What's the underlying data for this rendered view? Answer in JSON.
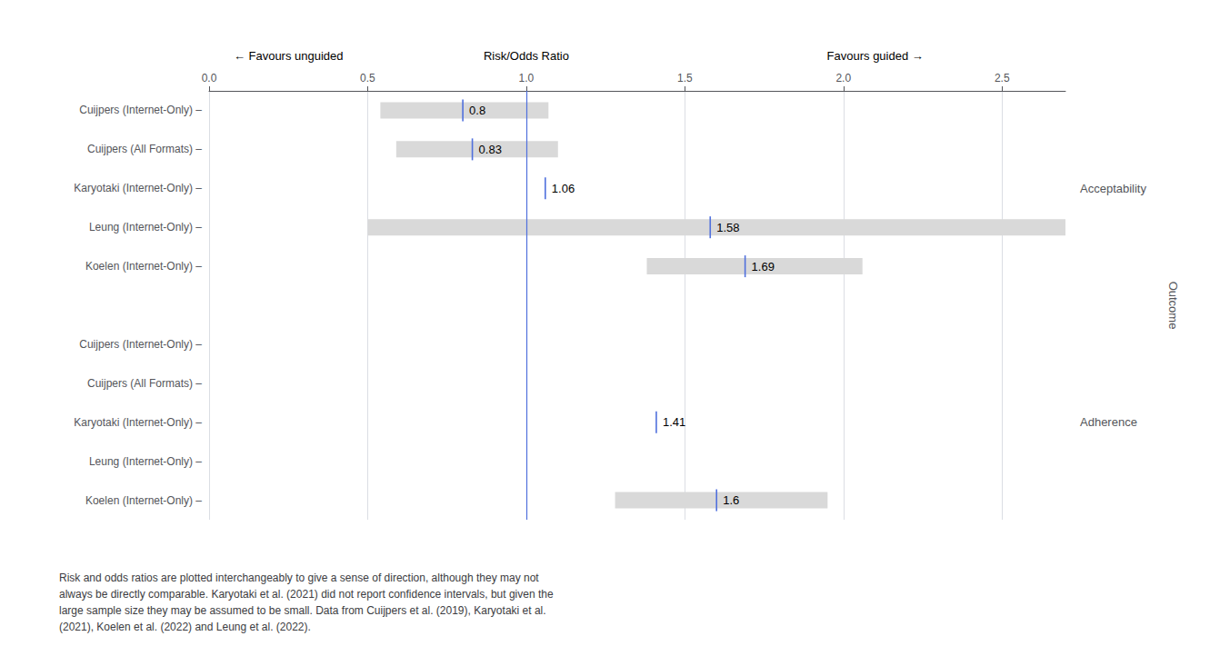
{
  "chart_data": {
    "type": "forest",
    "ylabel": "Outcome",
    "categories": [
      "Cuijpers (Internet-Only) –",
      "Cuijpers (All Formats) –",
      "Karyotaki (Internet-Only) –",
      "Leung (Internet-Only) –",
      "Koelen (Internet-Only) –"
    ],
    "groups": [
      {
        "label": "Acceptability",
        "values": [
          0.8,
          0.83,
          1.06,
          1.58,
          1.69
        ],
        "ci_lo": [
          0.54,
          0.59,
          null,
          0.5,
          1.38
        ],
        "ci_hi": [
          1.07,
          1.1,
          null,
          2.7,
          2.06
        ]
      },
      {
        "label": "Adherence",
        "values": [
          null,
          null,
          1.41,
          null,
          1.6
        ],
        "ci_lo": [
          null,
          null,
          null,
          null,
          1.28
        ],
        "ci_hi": [
          null,
          null,
          null,
          null,
          1.95
        ]
      }
    ],
    "color": "#d9d9d9",
    "xlim": [
      0,
      2.7
    ],
    "xticks": [
      {
        "value": 0,
        "label": "0.0"
      },
      0.5,
      {
        "value": 1,
        "label": "1.0"
      },
      1.5,
      {
        "value": 2,
        "label": "2.0"
      },
      2.5
    ],
    "reference_line": 1,
    "annotations": [
      {
        "text": "← Favours unguided",
        "x": 0.25
      },
      {
        "text": "Risk/Odds Ratio",
        "x": 1
      },
      {
        "text": "Favours guided →",
        "x": 2.1
      }
    ],
    "caption": "Risk and odds ratios are plotted interchangeably to give a sense of direction, although they may not\nalways be directly comparable. Karyotaki et al. (2021) did not report confidence intervals, but given the\nlarge sample size they may be assumed to be small. Data from Cuijpers et al. (2019), Karyotaki et al.\n(2021), Koelen et al. (2022) and Leung et al. (2022).",
    "grid": true,
    "data_labels": true
  }
}
